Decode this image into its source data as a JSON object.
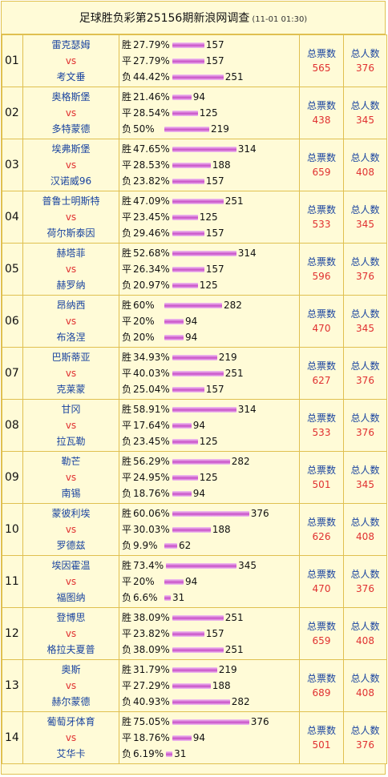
{
  "title": "足球胜负彩第25156期新浪网调查",
  "time": "(11-01 01:30)",
  "labels": {
    "vs": "vs",
    "total_votes": "总票数",
    "total_people": "总人数"
  },
  "colors": {
    "border": "#e0c050",
    "background": "#fffbd7",
    "team": "#1a44a0",
    "accent": "#e03030",
    "bar": "#c850c8"
  },
  "matches": [
    {
      "num": "01",
      "home": "雷克瑟姆",
      "away": "考文垂",
      "votes": "565",
      "people": "376",
      "options": [
        {
          "label": "胜",
          "pct": "27.79%",
          "count": "157",
          "value": 157
        },
        {
          "label": "平",
          "pct": "27.79%",
          "count": "157",
          "value": 157
        },
        {
          "label": "负",
          "pct": "44.42%",
          "count": "251",
          "value": 251
        }
      ]
    },
    {
      "num": "02",
      "home": "奥格斯堡",
      "away": "多特蒙德",
      "votes": "438",
      "people": "345",
      "options": [
        {
          "label": "胜",
          "pct": "21.46%",
          "count": "94",
          "value": 94
        },
        {
          "label": "平",
          "pct": "28.54%",
          "count": "125",
          "value": 125
        },
        {
          "label": "负",
          "pct": "50%",
          "count": "219",
          "value": 219
        }
      ]
    },
    {
      "num": "03",
      "home": "埃弗斯堡",
      "away": "汉诺威96",
      "votes": "659",
      "people": "408",
      "options": [
        {
          "label": "胜",
          "pct": "47.65%",
          "count": "314",
          "value": 314
        },
        {
          "label": "平",
          "pct": "28.53%",
          "count": "188",
          "value": 188
        },
        {
          "label": "负",
          "pct": "23.82%",
          "count": "157",
          "value": 157
        }
      ]
    },
    {
      "num": "04",
      "home": "普鲁士明斯特",
      "away": "荷尔斯泰因",
      "votes": "533",
      "people": "345",
      "options": [
        {
          "label": "胜",
          "pct": "47.09%",
          "count": "251",
          "value": 251
        },
        {
          "label": "平",
          "pct": "23.45%",
          "count": "125",
          "value": 125
        },
        {
          "label": "负",
          "pct": "29.46%",
          "count": "157",
          "value": 157
        }
      ]
    },
    {
      "num": "05",
      "home": "赫塔菲",
      "away": "赫罗纳",
      "votes": "596",
      "people": "376",
      "options": [
        {
          "label": "胜",
          "pct": "52.68%",
          "count": "314",
          "value": 314
        },
        {
          "label": "平",
          "pct": "26.34%",
          "count": "157",
          "value": 157
        },
        {
          "label": "负",
          "pct": "20.97%",
          "count": "125",
          "value": 125
        }
      ]
    },
    {
      "num": "06",
      "home": "昂纳西",
      "away": "布洛涅",
      "votes": "470",
      "people": "345",
      "options": [
        {
          "label": "胜",
          "pct": "60%",
          "count": "282",
          "value": 282
        },
        {
          "label": "平",
          "pct": "20%",
          "count": "94",
          "value": 94
        },
        {
          "label": "负",
          "pct": "20%",
          "count": "94",
          "value": 94
        }
      ]
    },
    {
      "num": "07",
      "home": "巴斯蒂亚",
      "away": "克莱蒙",
      "votes": "627",
      "people": "376",
      "options": [
        {
          "label": "胜",
          "pct": "34.93%",
          "count": "219",
          "value": 219
        },
        {
          "label": "平",
          "pct": "40.03%",
          "count": "251",
          "value": 251
        },
        {
          "label": "负",
          "pct": "25.04%",
          "count": "157",
          "value": 157
        }
      ]
    },
    {
      "num": "08",
      "home": "甘冈",
      "away": "拉瓦勒",
      "votes": "533",
      "people": "376",
      "options": [
        {
          "label": "胜",
          "pct": "58.91%",
          "count": "314",
          "value": 314
        },
        {
          "label": "平",
          "pct": "17.64%",
          "count": "94",
          "value": 94
        },
        {
          "label": "负",
          "pct": "23.45%",
          "count": "125",
          "value": 125
        }
      ]
    },
    {
      "num": "09",
      "home": "勒芒",
      "away": "南锡",
      "votes": "501",
      "people": "345",
      "options": [
        {
          "label": "胜",
          "pct": "56.29%",
          "count": "282",
          "value": 282
        },
        {
          "label": "平",
          "pct": "24.95%",
          "count": "125",
          "value": 125
        },
        {
          "label": "负",
          "pct": "18.76%",
          "count": "94",
          "value": 94
        }
      ]
    },
    {
      "num": "10",
      "home": "蒙彼利埃",
      "away": "罗德兹",
      "votes": "626",
      "people": "408",
      "options": [
        {
          "label": "胜",
          "pct": "60.06%",
          "count": "376",
          "value": 376
        },
        {
          "label": "平",
          "pct": "30.03%",
          "count": "188",
          "value": 188
        },
        {
          "label": "负",
          "pct": "9.9%",
          "count": "62",
          "value": 62
        }
      ]
    },
    {
      "num": "11",
      "home": "埃因霍温",
      "away": "福图纳",
      "votes": "470",
      "people": "376",
      "options": [
        {
          "label": "胜",
          "pct": "73.4%",
          "count": "345",
          "value": 345
        },
        {
          "label": "平",
          "pct": "20%",
          "count": "94",
          "value": 94
        },
        {
          "label": "负",
          "pct": "6.6%",
          "count": "31",
          "value": 31
        }
      ]
    },
    {
      "num": "12",
      "home": "登博思",
      "away": "格拉夫夏普",
      "votes": "659",
      "people": "408",
      "options": [
        {
          "label": "胜",
          "pct": "38.09%",
          "count": "251",
          "value": 251
        },
        {
          "label": "平",
          "pct": "23.82%",
          "count": "157",
          "value": 157
        },
        {
          "label": "负",
          "pct": "38.09%",
          "count": "251",
          "value": 251
        }
      ]
    },
    {
      "num": "13",
      "home": "奥斯",
      "away": "赫尔蒙德",
      "votes": "689",
      "people": "408",
      "options": [
        {
          "label": "胜",
          "pct": "31.79%",
          "count": "219",
          "value": 219
        },
        {
          "label": "平",
          "pct": "27.29%",
          "count": "188",
          "value": 188
        },
        {
          "label": "负",
          "pct": "40.93%",
          "count": "282",
          "value": 282
        }
      ]
    },
    {
      "num": "14",
      "home": "葡萄牙体育",
      "away": "艾华卡",
      "votes": "501",
      "people": "376",
      "options": [
        {
          "label": "胜",
          "pct": "75.05%",
          "count": "376",
          "value": 376
        },
        {
          "label": "平",
          "pct": "18.76%",
          "count": "94",
          "value": 94
        },
        {
          "label": "负",
          "pct": "6.19%",
          "count": "31",
          "value": 31
        }
      ]
    }
  ]
}
